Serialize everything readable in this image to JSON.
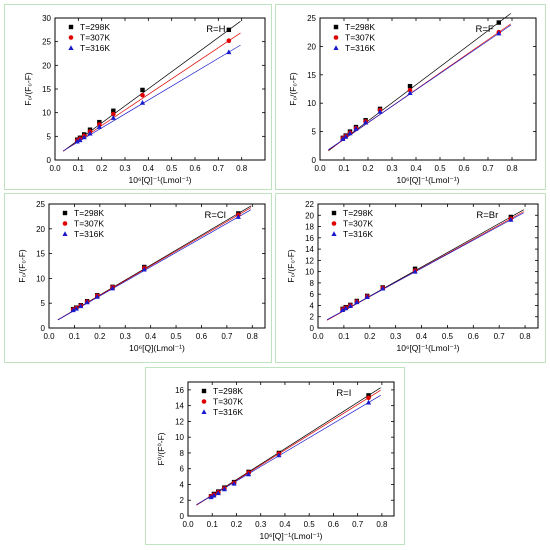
{
  "colors": {
    "T298": "#000000",
    "T307": "#e00000",
    "T316": "#1a1acc",
    "panel_border": "#bfe3bf"
  },
  "legend_labels": [
    "T=298K",
    "T=307K",
    "T=316K"
  ],
  "chart_data": [
    {
      "type": "scatter",
      "tag": "R=H",
      "xlabel": "10⁶[Q]⁻¹(Lmol⁻¹)",
      "ylabel": "F₀/(F₀-F)",
      "xlim": [
        0.0,
        0.9
      ],
      "ylim": [
        0,
        30
      ],
      "xticks": [
        0.0,
        0.1,
        0.2,
        0.3,
        0.4,
        0.5,
        0.6,
        0.7,
        0.8
      ],
      "yticks": [
        0,
        5,
        10,
        15,
        20,
        25,
        30
      ],
      "x": [
        0.095,
        0.107,
        0.125,
        0.15,
        0.19,
        0.25,
        0.375,
        0.745
      ],
      "legend_position": "top-left",
      "series": [
        {
          "name": "T=298K",
          "marker": "square",
          "values": [
            4.3,
            4.7,
            5.4,
            6.4,
            8.0,
            10.4,
            14.8,
            27.5
          ],
          "fit_intercept": 0.6
        },
        {
          "name": "T=307K",
          "marker": "circle",
          "values": [
            4.1,
            4.5,
            5.1,
            6.0,
            7.5,
            9.7,
            13.7,
            25.2
          ],
          "fit_intercept": 0.7
        },
        {
          "name": "T=316K",
          "marker": "triangle",
          "values": [
            3.9,
            4.2,
            4.8,
            5.6,
            7.0,
            8.9,
            12.1,
            22.8
          ],
          "fit_intercept": 0.9
        }
      ]
    },
    {
      "type": "scatter",
      "tag": "R=F",
      "xlabel": "10⁶[Q]⁻¹(Lmol⁻¹)",
      "ylabel": "F₀/(F₀-F)",
      "xlim": [
        0.0,
        0.9
      ],
      "ylim": [
        0,
        25
      ],
      "xticks": [
        0.0,
        0.1,
        0.2,
        0.3,
        0.4,
        0.5,
        0.6,
        0.7,
        0.8
      ],
      "yticks": [
        0,
        5,
        10,
        15,
        20,
        25
      ],
      "x": [
        0.095,
        0.107,
        0.125,
        0.15,
        0.19,
        0.25,
        0.375,
        0.745
      ],
      "legend_position": "top-left",
      "series": [
        {
          "name": "T=298K",
          "marker": "square",
          "values": [
            3.9,
            4.3,
            5.0,
            5.8,
            7.0,
            9.0,
            13.0,
            24.2
          ],
          "fit_intercept": 0.5
        },
        {
          "name": "T=307K",
          "marker": "circle",
          "values": [
            3.8,
            4.2,
            4.8,
            5.6,
            6.8,
            8.8,
            12.3,
            22.5
          ],
          "fit_intercept": 0.7
        },
        {
          "name": "T=316K",
          "marker": "triangle",
          "values": [
            3.7,
            4.1,
            4.7,
            5.5,
            6.6,
            8.5,
            11.8,
            22.3
          ],
          "fit_intercept": 0.8
        }
      ]
    },
    {
      "type": "scatter",
      "tag": "R=Cl",
      "xlabel": "10⁶[Q](Lmol⁻¹)",
      "ylabel": "F₀/(F₀-F)",
      "xlim": [
        0.0,
        0.85
      ],
      "ylim": [
        0,
        25
      ],
      "xticks": [
        0.0,
        0.1,
        0.2,
        0.3,
        0.4,
        0.5,
        0.6,
        0.7,
        0.8
      ],
      "yticks": [
        0,
        5,
        10,
        15,
        20,
        25
      ],
      "x": [
        0.095,
        0.107,
        0.125,
        0.15,
        0.19,
        0.25,
        0.375,
        0.745
      ],
      "legend_position": "top-left",
      "series": [
        {
          "name": "T=298K",
          "marker": "square",
          "values": [
            3.8,
            4.1,
            4.6,
            5.4,
            6.6,
            8.3,
            12.3,
            23.1
          ],
          "fit_intercept": 0.6
        },
        {
          "name": "T=307K",
          "marker": "circle",
          "values": [
            3.7,
            4.0,
            4.5,
            5.3,
            6.5,
            8.2,
            12.1,
            22.8
          ],
          "fit_intercept": 0.6
        },
        {
          "name": "T=316K",
          "marker": "triangle",
          "values": [
            3.6,
            3.9,
            4.4,
            5.2,
            6.3,
            8.0,
            11.8,
            22.4
          ],
          "fit_intercept": 0.6
        }
      ]
    },
    {
      "type": "scatter",
      "tag": "R=Br",
      "xlabel": "10⁶[Q]⁻¹(Lmol⁻¹)",
      "ylabel": "F₀/(F₀-F)",
      "xlim": [
        0.0,
        0.85
      ],
      "ylim": [
        0,
        22
      ],
      "xticks": [
        0.0,
        0.1,
        0.2,
        0.3,
        0.4,
        0.5,
        0.6,
        0.7,
        0.8
      ],
      "yticks": [
        0,
        2,
        4,
        6,
        8,
        10,
        12,
        14,
        16,
        18,
        20,
        22
      ],
      "x": [
        0.095,
        0.107,
        0.125,
        0.15,
        0.19,
        0.25,
        0.375,
        0.745
      ],
      "legend_position": "top-left",
      "series": [
        {
          "name": "T=298K",
          "marker": "square",
          "values": [
            3.4,
            3.7,
            4.1,
            4.8,
            5.7,
            7.2,
            10.5,
            19.7
          ],
          "fit_intercept": 0.5
        },
        {
          "name": "T=307K",
          "marker": "circle",
          "values": [
            3.3,
            3.6,
            4.0,
            4.7,
            5.6,
            7.1,
            10.2,
            19.4
          ],
          "fit_intercept": 0.5
        },
        {
          "name": "T=316K",
          "marker": "triangle",
          "values": [
            3.2,
            3.5,
            3.9,
            4.6,
            5.5,
            7.0,
            10.0,
            19.2
          ],
          "fit_intercept": 0.6
        }
      ]
    },
    {
      "type": "scatter",
      "tag": "R=I",
      "xlabel": "10⁶[Q]⁻¹(Lmol⁻¹)",
      "ylabel": "F⁰/(F⁰-F)",
      "xlim": [
        0.0,
        0.85
      ],
      "ylim": [
        0,
        17
      ],
      "xticks": [
        0.0,
        0.1,
        0.2,
        0.3,
        0.4,
        0.5,
        0.6,
        0.7,
        0.8
      ],
      "yticks": [
        0,
        2,
        4,
        6,
        8,
        10,
        12,
        14,
        16
      ],
      "x": [
        0.095,
        0.107,
        0.125,
        0.15,
        0.19,
        0.25,
        0.375,
        0.745
      ],
      "legend_position": "top-left",
      "series": [
        {
          "name": "T=298K",
          "marker": "square",
          "values": [
            2.5,
            2.8,
            3.1,
            3.6,
            4.3,
            5.6,
            8.0,
            15.3
          ],
          "fit_intercept": 0.7
        },
        {
          "name": "T=307K",
          "marker": "circle",
          "values": [
            2.5,
            2.7,
            3.0,
            3.5,
            4.2,
            5.5,
            7.9,
            15.0
          ],
          "fit_intercept": 0.7
        },
        {
          "name": "T=316K",
          "marker": "triangle",
          "values": [
            2.4,
            2.6,
            2.9,
            3.4,
            4.1,
            5.3,
            7.7,
            14.4
          ],
          "fit_intercept": 0.8
        }
      ]
    }
  ]
}
